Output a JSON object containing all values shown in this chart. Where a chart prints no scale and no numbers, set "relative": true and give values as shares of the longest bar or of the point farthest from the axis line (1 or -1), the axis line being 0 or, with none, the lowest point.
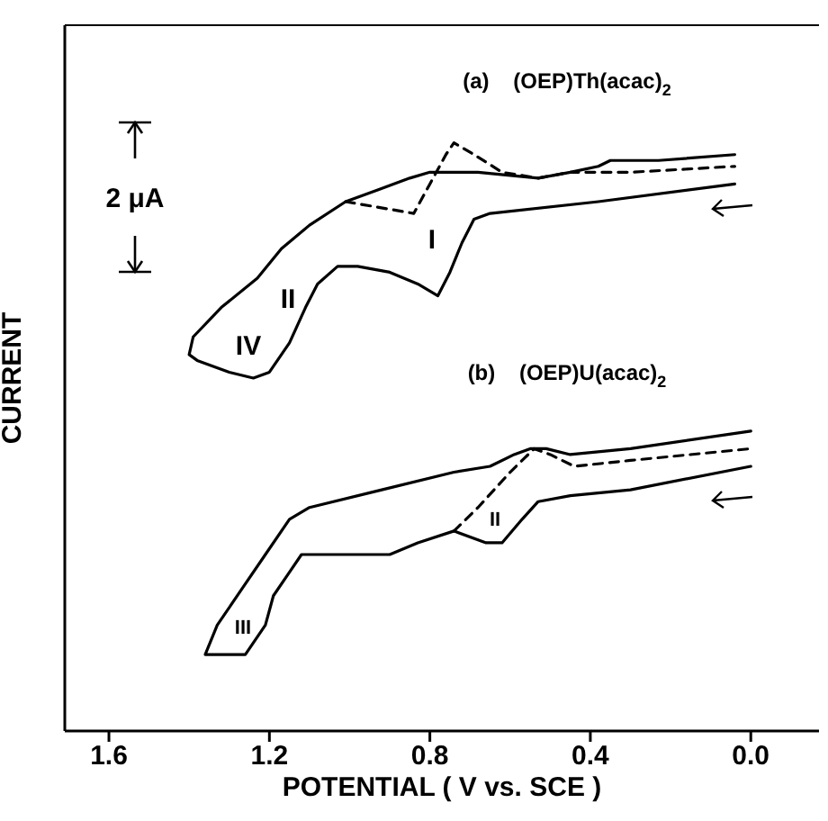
{
  "chart_data": {
    "type": "line",
    "relative": true,
    "xlabel": "POTENTIAL ( V vs. SCE )",
    "ylabel": "CURRENT",
    "xlim": [
      1.71,
      -0.17
    ],
    "xticks": [
      {
        "value": 1.6,
        "label": "1.6"
      },
      {
        "value": 1.2,
        "label": "1.2"
      },
      {
        "value": 0.8,
        "label": "0.8"
      },
      {
        "value": 0.4,
        "label": "0.4"
      },
      {
        "value": 0,
        "label": "0.0"
      }
    ],
    "grid": false,
    "legend": false,
    "marker": "none",
    "series": [
      {
        "color": "#000000",
        "line_style": "solid",
        "x": [
          0.04,
          0.38,
          0.65,
          0.69,
          0.72,
          0.75,
          0.78,
          0.83,
          0.9,
          0.98,
          1.03,
          1.08,
          1.11,
          1.15,
          1.2,
          1.24,
          1.3,
          1.38,
          1.4,
          1.39,
          1.32,
          1.23,
          1.17,
          1.1,
          1.01,
          0.93,
          0.85,
          0.8,
          0.75,
          0.68,
          0.53,
          0.45,
          0.38,
          0.35,
          0.23,
          0.04
        ],
        "values": [
          0.93,
          0.9,
          0.88,
          0.87,
          0.83,
          0.78,
          0.74,
          0.76,
          0.78,
          0.79,
          0.79,
          0.76,
          0.72,
          0.66,
          0.61,
          0.6,
          0.61,
          0.63,
          0.64,
          0.67,
          0.72,
          0.77,
          0.82,
          0.86,
          0.9,
          0.92,
          0.94,
          0.95,
          0.95,
          0.95,
          0.94,
          0.95,
          0.96,
          0.97,
          0.97,
          0.98
        ]
      },
      {
        "color": "#000000",
        "line_style": "dashed",
        "x": [
          1.01,
          0.84,
          0.8,
          0.76,
          0.74,
          0.69,
          0.62,
          0.53,
          0.45,
          0.3,
          0.04
        ],
        "values": [
          0.9,
          0.88,
          0.93,
          0.98,
          1.0,
          0.98,
          0.95,
          0.94,
          0.95,
          0.95,
          0.96
        ]
      },
      {
        "color": "#000000",
        "line_style": "solid",
        "x": [
          0.0,
          0.3,
          0.45,
          0.53,
          0.57,
          0.62,
          0.66,
          0.74,
          0.83,
          0.9,
          1.12,
          1.15,
          1.19,
          1.21,
          1.26,
          1.36,
          1.33,
          1.27,
          1.21,
          1.15,
          1.1,
          0.92,
          0.74,
          0.65,
          0.59,
          0.55,
          0.51,
          0.45,
          0.3,
          0.0
        ],
        "values": [
          0.45,
          0.41,
          0.4,
          0.39,
          0.36,
          0.32,
          0.32,
          0.34,
          0.32,
          0.3,
          0.3,
          0.27,
          0.23,
          0.18,
          0.13,
          0.13,
          0.18,
          0.24,
          0.3,
          0.36,
          0.38,
          0.41,
          0.44,
          0.45,
          0.47,
          0.48,
          0.48,
          0.47,
          0.48,
          0.51
        ]
      },
      {
        "color": "#000000",
        "line_style": "dashed",
        "x": [
          0.74,
          0.68,
          0.6,
          0.54,
          0.5,
          0.44,
          0.3,
          0.0
        ],
        "values": [
          0.34,
          0.38,
          0.44,
          0.48,
          0.47,
          0.45,
          0.46,
          0.48
        ]
      }
    ],
    "annotations": [
      "(a)    (OEP)Th(acac)$_{2}$",
      "(b)    (OEP)U(acac)$_{2}$",
      "2 μA",
      "I",
      "II",
      "IV",
      "II",
      "III"
    ]
  }
}
